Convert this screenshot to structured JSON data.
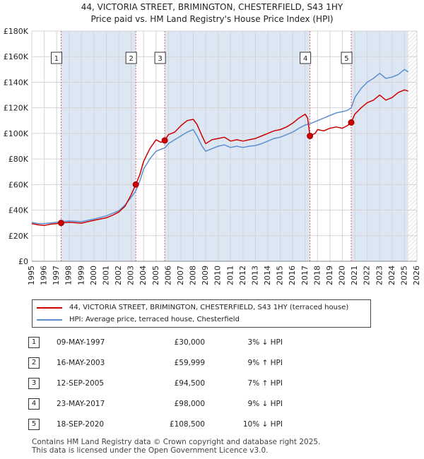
{
  "title": "44, VICTORIA STREET, BRIMINGTON, CHESTERFIELD, S43 1HY",
  "subtitle": "Price paid vs. HM Land Registry's House Price Index (HPI)",
  "colors": {
    "property": "#cc0000",
    "hpi": "#5b8fd0",
    "shade": "#dde6f3",
    "grid": "#d4d4d4"
  },
  "chart_data": {
    "type": "line",
    "xlim": [
      1995,
      2026
    ],
    "ylim": [
      0,
      180000
    ],
    "y_ticks": [
      {
        "value": 0,
        "label": "£0"
      },
      {
        "value": 20000,
        "label": "£20K"
      },
      {
        "value": 40000,
        "label": "£40K"
      },
      {
        "value": 60000,
        "label": "£60K"
      },
      {
        "value": 80000,
        "label": "£80K"
      },
      {
        "value": 100000,
        "label": "£100K"
      },
      {
        "value": 120000,
        "label": "£120K"
      },
      {
        "value": 140000,
        "label": "£140K"
      },
      {
        "value": 160000,
        "label": "£160K"
      },
      {
        "value": 180000,
        "label": "£180K"
      }
    ],
    "x_ticks": [
      "1995",
      "1996",
      "1997",
      "1998",
      "1999",
      "2000",
      "2001",
      "2002",
      "2003",
      "2004",
      "2005",
      "2006",
      "2007",
      "2008",
      "2009",
      "2010",
      "2011",
      "2012",
      "2013",
      "2014",
      "2015",
      "2016",
      "2017",
      "2018",
      "2019",
      "2020",
      "2021",
      "2022",
      "2023",
      "2024",
      "2025",
      "2026"
    ],
    "shaded_ranges": [
      [
        1997.36,
        2003.37
      ],
      [
        2005.7,
        2017.39
      ],
      [
        2020.71,
        2025.3
      ]
    ],
    "forecast_start": 2025.3,
    "series": [
      {
        "name": "44, VICTORIA STREET, BRIMINGTON, CHESTERFIELD, S43 1HY (terraced house)",
        "points": [
          [
            1995.0,
            29500
          ],
          [
            1995.5,
            28500
          ],
          [
            1996.0,
            28000
          ],
          [
            1996.5,
            29000
          ],
          [
            1997.0,
            29500
          ],
          [
            1997.36,
            30000
          ],
          [
            1998.0,
            30500
          ],
          [
            1999.0,
            29800
          ],
          [
            2000.0,
            32000
          ],
          [
            2001.0,
            34000
          ],
          [
            2001.5,
            36000
          ],
          [
            2002.0,
            38500
          ],
          [
            2002.5,
            43000
          ],
          [
            2003.0,
            52000
          ],
          [
            2003.37,
            59999
          ],
          [
            2003.7,
            68000
          ],
          [
            2004.0,
            78000
          ],
          [
            2004.5,
            88000
          ],
          [
            2005.0,
            95000
          ],
          [
            2005.4,
            93000
          ],
          [
            2005.7,
            94500
          ],
          [
            2006.0,
            99000
          ],
          [
            2006.5,
            101000
          ],
          [
            2007.0,
            106000
          ],
          [
            2007.5,
            110000
          ],
          [
            2008.0,
            111000
          ],
          [
            2008.3,
            107000
          ],
          [
            2008.7,
            98000
          ],
          [
            2009.0,
            92000
          ],
          [
            2009.5,
            95000
          ],
          [
            2010.0,
            96000
          ],
          [
            2010.5,
            97000
          ],
          [
            2011.0,
            94000
          ],
          [
            2011.5,
            95000
          ],
          [
            2012.0,
            94000
          ],
          [
            2012.5,
            95000
          ],
          [
            2013.0,
            96000
          ],
          [
            2013.5,
            98000
          ],
          [
            2014.0,
            100000
          ],
          [
            2014.5,
            102000
          ],
          [
            2015.0,
            103000
          ],
          [
            2015.5,
            105000
          ],
          [
            2016.0,
            108000
          ],
          [
            2016.5,
            112000
          ],
          [
            2017.0,
            115000
          ],
          [
            2017.2,
            112000
          ],
          [
            2017.39,
            98000
          ],
          [
            2017.8,
            100000
          ],
          [
            2018.0,
            103000
          ],
          [
            2018.5,
            102000
          ],
          [
            2019.0,
            104000
          ],
          [
            2019.5,
            105000
          ],
          [
            2020.0,
            104000
          ],
          [
            2020.4,
            106000
          ],
          [
            2020.71,
            108500
          ],
          [
            2021.0,
            115000
          ],
          [
            2021.5,
            120000
          ],
          [
            2022.0,
            124000
          ],
          [
            2022.5,
            126000
          ],
          [
            2023.0,
            130000
          ],
          [
            2023.5,
            126000
          ],
          [
            2024.0,
            128000
          ],
          [
            2024.5,
            132000
          ],
          [
            2025.0,
            134000
          ],
          [
            2025.3,
            133000
          ]
        ]
      },
      {
        "name": "HPI: Average price, terraced house, Chesterfield",
        "points": [
          [
            1995.0,
            30500
          ],
          [
            1995.5,
            29500
          ],
          [
            1996.0,
            29500
          ],
          [
            1996.5,
            30000
          ],
          [
            1997.0,
            30500
          ],
          [
            1997.36,
            31000
          ],
          [
            1998.0,
            31500
          ],
          [
            1999.0,
            31000
          ],
          [
            2000.0,
            33000
          ],
          [
            2001.0,
            35500
          ],
          [
            2001.5,
            37500
          ],
          [
            2002.0,
            39500
          ],
          [
            2002.5,
            44000
          ],
          [
            2003.0,
            50000
          ],
          [
            2003.37,
            55000
          ],
          [
            2003.7,
            63000
          ],
          [
            2004.0,
            72000
          ],
          [
            2004.5,
            80000
          ],
          [
            2005.0,
            86000
          ],
          [
            2005.5,
            88000
          ],
          [
            2005.7,
            88500
          ],
          [
            2006.0,
            92000
          ],
          [
            2006.5,
            95000
          ],
          [
            2007.0,
            98000
          ],
          [
            2007.5,
            101000
          ],
          [
            2008.0,
            103000
          ],
          [
            2008.3,
            98000
          ],
          [
            2008.7,
            90000
          ],
          [
            2009.0,
            86000
          ],
          [
            2009.5,
            88000
          ],
          [
            2010.0,
            90000
          ],
          [
            2010.5,
            91000
          ],
          [
            2011.0,
            89000
          ],
          [
            2011.5,
            90000
          ],
          [
            2012.0,
            89000
          ],
          [
            2012.5,
            90000
          ],
          [
            2013.0,
            90500
          ],
          [
            2013.5,
            92000
          ],
          [
            2014.0,
            94000
          ],
          [
            2014.5,
            96000
          ],
          [
            2015.0,
            97000
          ],
          [
            2015.5,
            99000
          ],
          [
            2016.0,
            101000
          ],
          [
            2016.5,
            104000
          ],
          [
            2017.0,
            106500
          ],
          [
            2017.39,
            107500
          ],
          [
            2018.0,
            110000
          ],
          [
            2018.5,
            112000
          ],
          [
            2019.0,
            114000
          ],
          [
            2019.5,
            116000
          ],
          [
            2020.0,
            117000
          ],
          [
            2020.4,
            118000
          ],
          [
            2020.71,
            120000
          ],
          [
            2021.0,
            128000
          ],
          [
            2021.5,
            135000
          ],
          [
            2022.0,
            140000
          ],
          [
            2022.5,
            143000
          ],
          [
            2023.0,
            147000
          ],
          [
            2023.5,
            143000
          ],
          [
            2024.0,
            144000
          ],
          [
            2024.5,
            146000
          ],
          [
            2025.0,
            150000
          ],
          [
            2025.3,
            148000
          ]
        ]
      }
    ],
    "sale_markers": [
      {
        "label": "1",
        "date": 1997.36,
        "price": 30000
      },
      {
        "label": "2",
        "date": 2003.37,
        "price": 59999
      },
      {
        "label": "3",
        "date": 2005.7,
        "price": 94500
      },
      {
        "label": "4",
        "date": 2017.39,
        "price": 98000
      },
      {
        "label": "5",
        "date": 2020.71,
        "price": 108500
      }
    ]
  },
  "legend": {
    "property_label": "44, VICTORIA STREET, BRIMINGTON, CHESTERFIELD, S43 1HY (terraced house)",
    "hpi_label": "HPI: Average price, terraced house, Chesterfield"
  },
  "sales": [
    {
      "num": "1",
      "date": "09-MAY-1997",
      "price": "£30,000",
      "hpi": "3% ↓ HPI"
    },
    {
      "num": "2",
      "date": "16-MAY-2003",
      "price": "£59,999",
      "hpi": "9% ↑ HPI"
    },
    {
      "num": "3",
      "date": "12-SEP-2005",
      "price": "£94,500",
      "hpi": "7% ↑ HPI"
    },
    {
      "num": "4",
      "date": "23-MAY-2017",
      "price": "£98,000",
      "hpi": "9% ↓ HPI"
    },
    {
      "num": "5",
      "date": "18-SEP-2020",
      "price": "£108,500",
      "hpi": "10% ↓ HPI"
    }
  ],
  "footer": {
    "line1": "Contains HM Land Registry data © Crown copyright and database right 2025.",
    "line2": "This data is licensed under the Open Government Licence v3.0."
  }
}
